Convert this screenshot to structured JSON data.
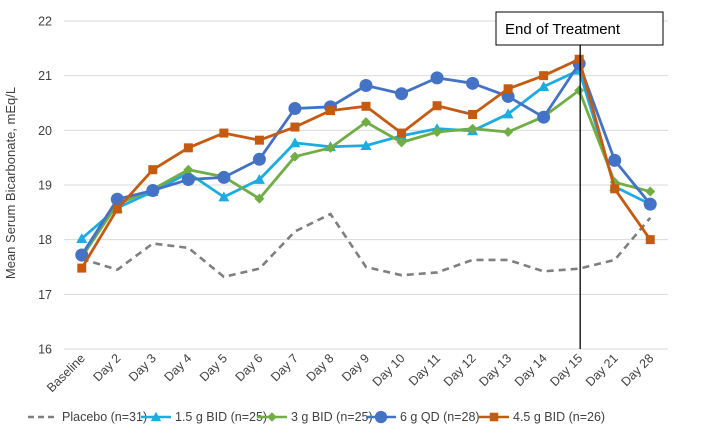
{
  "chart_data": {
    "type": "line",
    "title": "",
    "xlabel": "",
    "ylabel": "Mean Serum Bicarbonate, mEq/L",
    "ylim": [
      16,
      22
    ],
    "yticks": [
      16,
      17,
      18,
      19,
      20,
      21,
      22
    ],
    "grid": true,
    "legend_position": "bottom",
    "categories": [
      "Baseline",
      "Day 2",
      "Day 3",
      "Day 4",
      "Day 5",
      "Day 6",
      "Day 7",
      "Day 8",
      "Day 9",
      "Day 10",
      "Day 11",
      "Day 12",
      "Day 13",
      "Day 14",
      "Day 15",
      "Day 21",
      "Day 28"
    ],
    "series": [
      {
        "name": "Placebo (n=31)",
        "marker": "none",
        "dashed": true,
        "color": "#7f7f7f",
        "values": [
          17.65,
          17.45,
          17.93,
          17.85,
          17.32,
          17.47,
          18.15,
          18.47,
          17.5,
          17.35,
          17.4,
          17.63,
          17.63,
          17.42,
          17.47,
          17.63,
          18.4
        ]
      },
      {
        "name": "1.5 g BID (n=25)",
        "marker": "triangle",
        "color": "#1cabe2",
        "values": [
          18.02,
          18.58,
          18.88,
          19.22,
          18.78,
          19.1,
          19.77,
          19.7,
          19.72,
          19.9,
          20.03,
          19.99,
          20.3,
          20.8,
          21.1,
          18.97,
          18.65
        ]
      },
      {
        "name": "3 g BID (n=25)",
        "marker": "diamond",
        "color": "#70ad47",
        "values": [
          17.68,
          18.65,
          18.92,
          19.28,
          19.15,
          18.75,
          19.52,
          19.68,
          20.15,
          19.78,
          19.97,
          20.03,
          19.97,
          20.25,
          20.73,
          19.05,
          18.88
        ]
      },
      {
        "name": "6 g QD (n=28)",
        "marker": "circle",
        "color": "#4472c4",
        "values": [
          17.72,
          18.74,
          18.9,
          19.1,
          19.14,
          19.47,
          20.4,
          20.43,
          20.82,
          20.67,
          20.96,
          20.86,
          20.62,
          20.24,
          21.22,
          19.45,
          18.65
        ]
      },
      {
        "name": "4.5 g BID (n=26)",
        "marker": "square",
        "color": "#c55a11",
        "values": [
          17.48,
          18.56,
          19.28,
          19.68,
          19.95,
          19.82,
          20.06,
          20.36,
          20.44,
          19.95,
          20.45,
          20.29,
          20.76,
          21.0,
          21.3,
          18.93,
          18.0
        ]
      }
    ],
    "annotation": {
      "text": "End of Treatment",
      "at_category": "Day 15"
    }
  }
}
